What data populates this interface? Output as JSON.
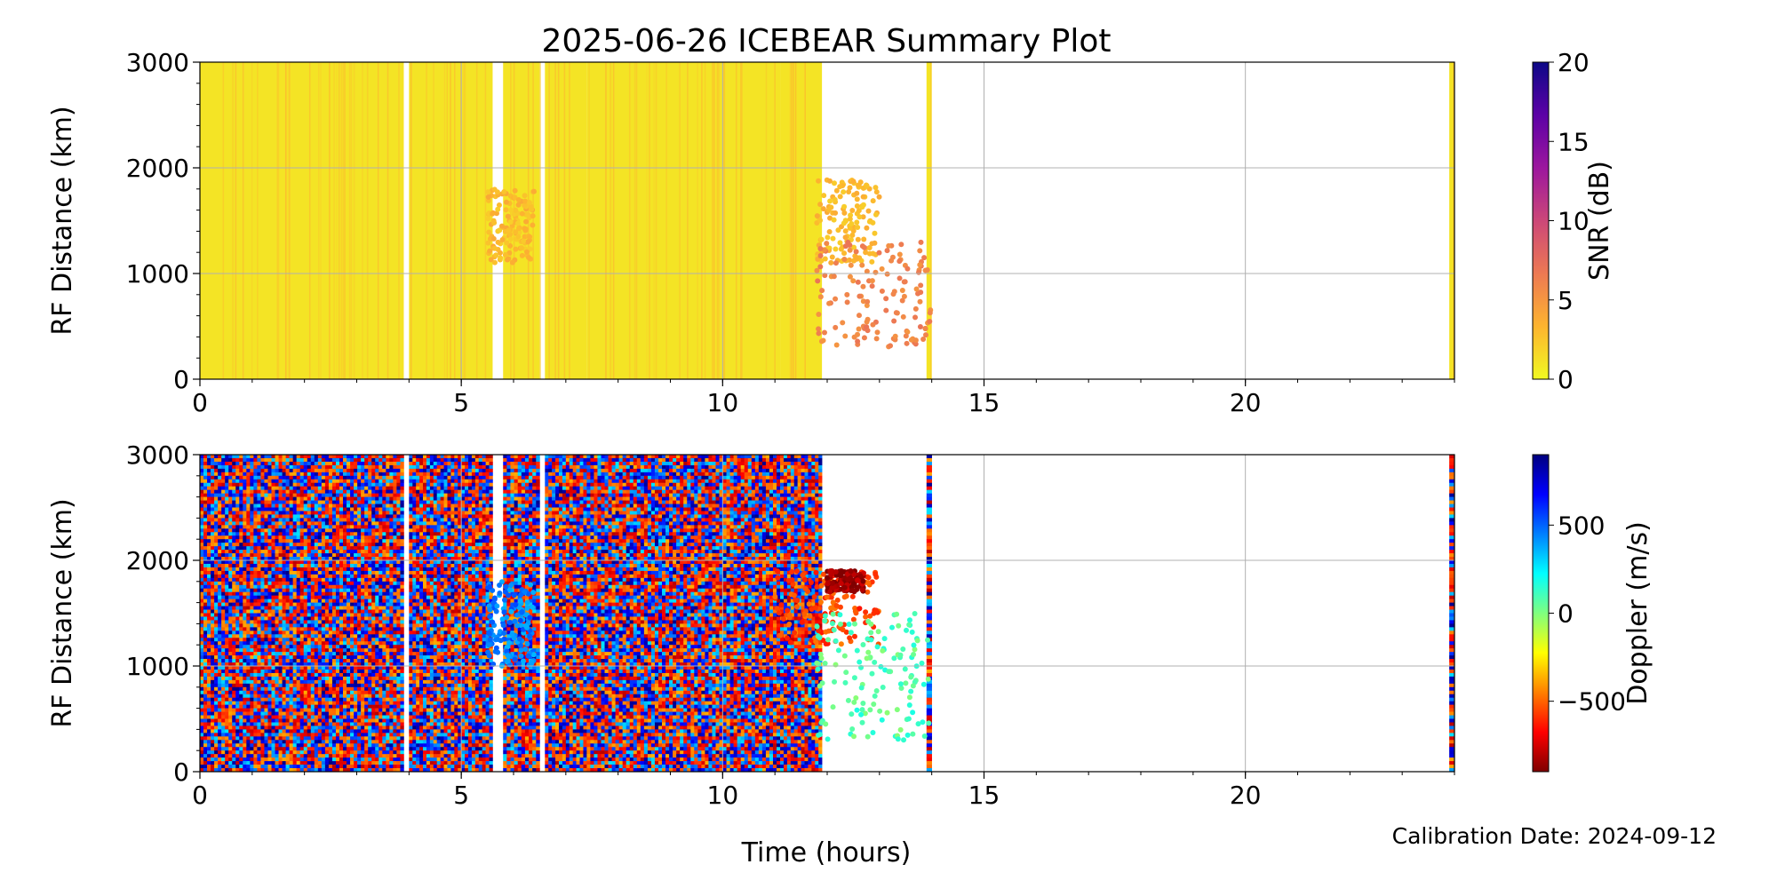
{
  "figure": {
    "title": "2025-06-26 ICEBEAR Summary Plot",
    "footer": "Calibration Date: 2024-09-12",
    "xlabel": "Time (hours)"
  },
  "chart_data": [
    {
      "type": "scatter",
      "panel": "snr",
      "title": "2025-06-26 ICEBEAR Summary Plot",
      "xlabel": "",
      "ylabel": "RF Distance (km)",
      "xlim": [
        0,
        24
      ],
      "ylim": [
        0,
        3000
      ],
      "x_ticks": [
        0,
        5,
        10,
        15,
        20
      ],
      "y_ticks": [
        0,
        1000,
        2000,
        3000
      ],
      "grid": true,
      "colorbar": {
        "label": "SNR (dB)",
        "range": [
          0,
          20
        ],
        "ticks": [
          0,
          5,
          10,
          15,
          20
        ],
        "colormap": "plasma_r",
        "stops": [
          "#f0f921",
          "#fdb42f",
          "#ed7953",
          "#cc4778",
          "#9c179e",
          "#5c01a6",
          "#0d0887"
        ]
      },
      "dense_blocks": [
        {
          "x": [
            0.0,
            3.9
          ],
          "y": [
            0,
            3000
          ]
        },
        {
          "x": [
            4.0,
            5.6
          ],
          "y": [
            0,
            3000
          ]
        },
        {
          "x": [
            5.8,
            6.5
          ],
          "y": [
            0,
            3000
          ]
        },
        {
          "x": [
            6.6,
            7.4
          ],
          "y": [
            0,
            3000
          ]
        },
        {
          "x": [
            7.4,
            11.1
          ],
          "y": [
            0,
            3000
          ]
        },
        {
          "x": [
            11.1,
            11.9
          ],
          "y": [
            0,
            3000
          ]
        },
        {
          "x": [
            13.9,
            14.0
          ],
          "y": [
            0,
            3000
          ]
        },
        {
          "x": [
            23.9,
            24.0
          ],
          "y": [
            0,
            3000
          ]
        }
      ],
      "clusters": [
        {
          "x": [
            5.5,
            6.4
          ],
          "y": [
            1100,
            1800
          ],
          "snr": 2
        },
        {
          "x": [
            11.8,
            13.0
          ],
          "y": [
            1100,
            1900
          ],
          "snr": 2
        },
        {
          "x": [
            11.8,
            14.0
          ],
          "y": [
            300,
            1300
          ],
          "snr": 5
        }
      ]
    },
    {
      "type": "scatter",
      "panel": "doppler",
      "title": "",
      "xlabel": "Time (hours)",
      "ylabel": "RF Distance (km)",
      "xlim": [
        0,
        24
      ],
      "ylim": [
        0,
        3000
      ],
      "x_ticks": [
        0,
        5,
        10,
        15,
        20
      ],
      "y_ticks": [
        0,
        1000,
        2000,
        3000
      ],
      "grid": true,
      "colorbar": {
        "label": "Doppler (m/s)",
        "range": [
          -900,
          900
        ],
        "ticks": [
          -500,
          0,
          500
        ],
        "tick_labels": [
          "−500",
          "0",
          "500"
        ],
        "colormap": "jet_r",
        "stops": [
          "#7f0000",
          "#ff0000",
          "#ff7f00",
          "#ffff00",
          "#7fff7f",
          "#00ffff",
          "#007fff",
          "#0000ff",
          "#00007f"
        ]
      },
      "dense_blocks": [
        {
          "x": [
            0.0,
            3.9
          ],
          "y": [
            0,
            3000
          ]
        },
        {
          "x": [
            4.0,
            5.6
          ],
          "y": [
            0,
            3000
          ]
        },
        {
          "x": [
            5.8,
            6.5
          ],
          "y": [
            0,
            3000
          ]
        },
        {
          "x": [
            6.6,
            7.4
          ],
          "y": [
            0,
            3000
          ]
        },
        {
          "x": [
            7.4,
            11.1
          ],
          "y": [
            0,
            3000
          ]
        },
        {
          "x": [
            11.1,
            11.9
          ],
          "y": [
            0,
            3000
          ]
        },
        {
          "x": [
            13.9,
            14.0
          ],
          "y": [
            0,
            3000
          ]
        },
        {
          "x": [
            23.9,
            24.0
          ],
          "y": [
            0,
            3000
          ]
        }
      ],
      "clusters": [
        {
          "x": [
            5.5,
            6.4
          ],
          "y": [
            1000,
            1800
          ],
          "doppler": 450
        },
        {
          "x": [
            11.0,
            13.0
          ],
          "y": [
            1200,
            1900
          ],
          "doppler": -550
        },
        {
          "x": [
            12.0,
            12.7
          ],
          "y": [
            1700,
            1900
          ],
          "doppler": -850
        },
        {
          "x": [
            11.8,
            14.0
          ],
          "y": [
            300,
            1500
          ],
          "doppler": 80
        }
      ]
    }
  ]
}
